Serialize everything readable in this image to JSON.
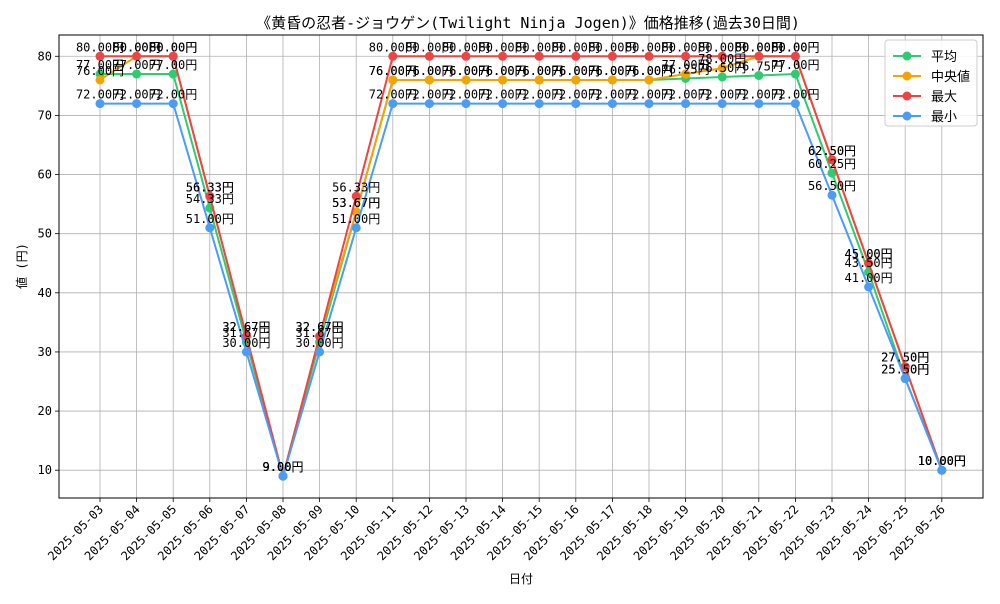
{
  "chart_data": {
    "type": "line",
    "title": "《黄昏の忍者-ジョウゲン(Twilight Ninja Jogen)》価格推移(過去30日間)",
    "xlabel": "日付",
    "ylabel": "値 (円)",
    "ylim": [
      5.3,
      83.6
    ],
    "yticks": [
      10,
      20,
      30,
      40,
      50,
      60,
      70,
      80
    ],
    "grid": true,
    "legend_position": "top-right",
    "categories": [
      "2025-05-03",
      "2025-05-04",
      "2025-05-05",
      "2025-05-06",
      "2025-05-07",
      "2025-05-08",
      "2025-05-09",
      "2025-05-10",
      "2025-05-11",
      "2025-05-12",
      "2025-05-13",
      "2025-05-14",
      "2025-05-15",
      "2025-05-16",
      "2025-05-17",
      "2025-05-18",
      "2025-05-19",
      "2025-05-20",
      "2025-05-21",
      "2025-05-22",
      "2025-05-23",
      "2025-05-24",
      "2025-05-25",
      "2025-05-26"
    ],
    "series": [
      {
        "name": "平均",
        "color": "#2ecc71",
        "values": [
          77.0,
          77.0,
          77.0,
          54.33,
          31.67,
          9.0,
          31.67,
          53.67,
          76.0,
          76.0,
          76.0,
          76.0,
          76.0,
          76.0,
          76.0,
          76.0,
          76.25,
          76.5,
          76.75,
          77.0,
          60.25,
          43.5,
          25.5,
          10.0
        ],
        "labels": [
          "77.00円",
          "77.00円",
          "77.00円",
          "54.33円",
          "31.67円",
          "9.00円",
          "31.67円",
          "53.67円",
          "76.00円",
          "76.00円",
          "76.00円",
          "76.00円",
          "76.00円",
          "76.00円",
          "76.00円",
          "76.00円",
          "76.25円",
          "76.50円",
          "76.75円",
          "77.00円",
          "60.25円",
          "43.50円",
          "25.50円",
          "10.00円"
        ]
      },
      {
        "name": "中央値",
        "color": "#f5a300",
        "values": [
          76.0,
          80.0,
          80.0,
          56.33,
          32.67,
          9.0,
          32.67,
          53.67,
          76.0,
          76.0,
          76.0,
          76.0,
          76.0,
          76.0,
          76.0,
          76.0,
          77.0,
          78.0,
          80.0,
          80.0,
          62.5,
          45.0,
          27.5,
          10.0
        ],
        "labels": [
          "76.00円",
          "80.00円",
          "80.00円",
          "56.33円",
          "32.67円",
          "9.00円",
          "32.67円",
          "53.67円",
          "76.00円",
          "76.00円",
          "76.00円",
          "76.00円",
          "76.00円",
          "76.00円",
          "76.00円",
          "76.00円",
          "77.00円",
          "78.00円",
          "80.00円",
          "80.00円",
          "62.50円",
          "45.00円",
          "27.50円",
          "10.00円"
        ]
      },
      {
        "name": "最大",
        "color": "#ef4444",
        "values": [
          80.0,
          80.0,
          80.0,
          56.33,
          32.67,
          9.0,
          32.67,
          56.33,
          80.0,
          80.0,
          80.0,
          80.0,
          80.0,
          80.0,
          80.0,
          80.0,
          80.0,
          80.0,
          80.0,
          80.0,
          62.5,
          45.0,
          27.5,
          10.0
        ],
        "labels": [
          "80.00円",
          "80.00円",
          "80.00円",
          "56.33円",
          "32.67円",
          "9.00円",
          "32.67円",
          "56.33円",
          "80.00円",
          "80.00円",
          "80.00円",
          "80.00円",
          "80.00円",
          "80.00円",
          "80.00円",
          "80.00円",
          "80.00円",
          "80.00円",
          "80.00円",
          "80.00円",
          "62.50円",
          "45.00円",
          "27.50円",
          "10.00円"
        ]
      },
      {
        "name": "最小",
        "color": "#4a9cf5",
        "values": [
          72.0,
          72.0,
          72.0,
          51.0,
          30.0,
          9.0,
          30.0,
          51.0,
          72.0,
          72.0,
          72.0,
          72.0,
          72.0,
          72.0,
          72.0,
          72.0,
          72.0,
          72.0,
          72.0,
          72.0,
          56.5,
          41.0,
          25.5,
          10.0
        ],
        "labels": [
          "72.00円",
          "72.00円",
          "72.00円",
          "51.00円",
          "30.00円",
          "9.00円",
          "30.00円",
          "51.00円",
          "72.00円",
          "72.00円",
          "72.00円",
          "72.00円",
          "72.00円",
          "72.00円",
          "72.00円",
          "72.00円",
          "72.00円",
          "72.00円",
          "72.00円",
          "72.00円",
          "56.50円",
          "41.00円",
          "25.50円",
          "10.00円"
        ]
      }
    ]
  }
}
